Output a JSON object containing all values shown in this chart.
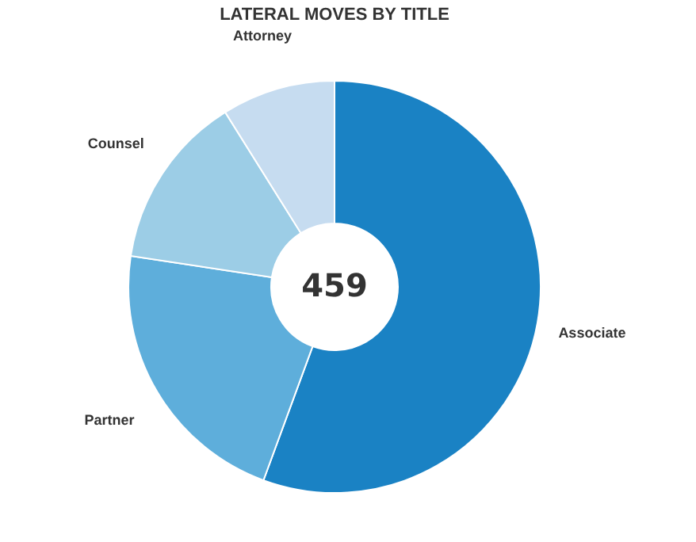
{
  "chart_data": {
    "type": "donut",
    "title": "LATERAL MOVES BY TITLE",
    "categories": [
      "Associate",
      "Partner",
      "Counsel",
      "Attorney"
    ],
    "values": [
      55.6,
      21.8,
      13.7,
      8.9
    ],
    "colors": [
      "#1a82c4",
      "#5eaedb",
      "#9ccde6",
      "#c6dcf0"
    ],
    "annotations": [
      "459"
    ],
    "legend": false
  }
}
